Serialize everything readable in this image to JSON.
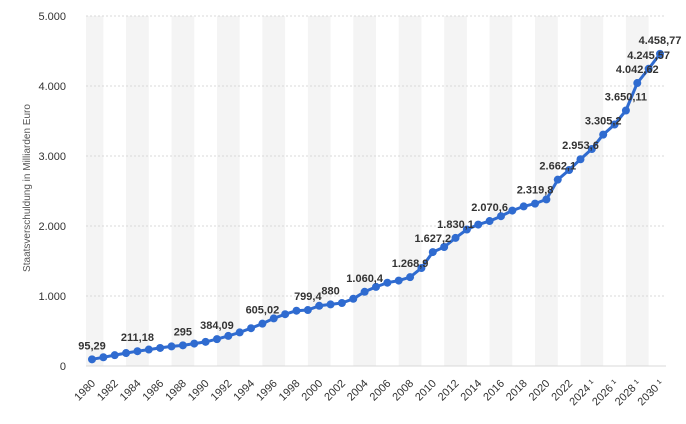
{
  "chart_data": {
    "type": "line",
    "title": "",
    "xlabel": "",
    "ylabel": "Staatsverschuldung in Milliarden Euro",
    "ylim": [
      0,
      5000
    ],
    "yticks": [
      "0",
      "1.000",
      "2.000",
      "3.000",
      "4.000",
      "5.000"
    ],
    "ytick_values": [
      0,
      1000,
      2000,
      3000,
      4000,
      5000
    ],
    "xtick_labels": [
      "1980",
      "1982",
      "1984",
      "1986",
      "1988",
      "1990",
      "1992",
      "1994",
      "1996",
      "1998",
      "2000",
      "2002",
      "2004",
      "2006",
      "2008",
      "2010",
      "2012",
      "2014",
      "2016",
      "2018",
      "2020",
      "2022",
      "2024 ¹",
      "2026 ¹",
      "2028 ¹",
      "2030 ¹"
    ],
    "color": "#2f6bd0",
    "x": [
      1980,
      1981,
      1982,
      1983,
      1984,
      1985,
      1986,
      1987,
      1988,
      1989,
      1990,
      1991,
      1992,
      1993,
      1994,
      1995,
      1996,
      1997,
      1998,
      1999,
      2000,
      2001,
      2002,
      2003,
      2004,
      2005,
      2006,
      2007,
      2008,
      2009,
      2010,
      2011,
      2012,
      2013,
      2014,
      2015,
      2016,
      2017,
      2018,
      2019,
      2020,
      2021,
      2022,
      2023,
      2024,
      2025,
      2026,
      2027,
      2028,
      2029,
      2030
    ],
    "values": [
      95.29,
      125,
      155,
      185,
      211.18,
      235,
      258,
      280,
      295,
      320,
      345,
      384.09,
      430,
      480,
      540,
      605.02,
      680,
      740,
      790,
      799.4,
      860,
      880,
      900,
      960,
      1060.4,
      1130,
      1190,
      1220,
      1268.9,
      1400,
      1627.2,
      1700,
      1830.1,
      1950,
      2020,
      2070.6,
      2140,
      2220,
      2280,
      2319.8,
      2380,
      2662.1,
      2800,
      2953.6,
      3100,
      3305.2,
      3450,
      3650.11,
      4042.62,
      4245.57,
      4458.77
    ],
    "data_labels": [
      {
        "x": 1980,
        "text": "95,29"
      },
      {
        "x": 1984,
        "text": "211,18"
      },
      {
        "x": 1988,
        "text": "295"
      },
      {
        "x": 1991,
        "text": "384,09"
      },
      {
        "x": 1995,
        "text": "605,02"
      },
      {
        "x": 1999,
        "text": "799,4"
      },
      {
        "x": 2001,
        "text": "880"
      },
      {
        "x": 2004,
        "text": "1.060,4"
      },
      {
        "x": 2008,
        "text": "1.268,9"
      },
      {
        "x": 2010,
        "text": "1.627,2"
      },
      {
        "x": 2012,
        "text": "1.830,1"
      },
      {
        "x": 2015,
        "text": "2.070,6"
      },
      {
        "x": 2019,
        "text": "2.319,8"
      },
      {
        "x": 2021,
        "text": "2.662,1"
      },
      {
        "x": 2023,
        "text": "2.953,6"
      },
      {
        "x": 2025,
        "text": "3.305,2"
      },
      {
        "x": 2027,
        "text": "3.650,11"
      },
      {
        "x": 2028,
        "text": "4.042,62"
      },
      {
        "x": 2029,
        "text": "4.245,57"
      },
      {
        "x": 2030,
        "text": "4.458,77"
      }
    ]
  }
}
